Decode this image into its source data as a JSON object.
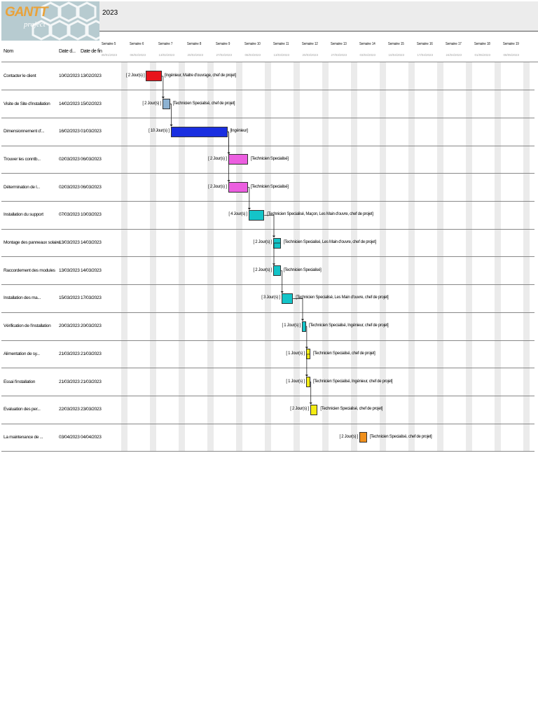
{
  "header": {
    "logo_text": "GANTT",
    "logo_sub": "project",
    "year": "2023"
  },
  "columns": {
    "name": "Nom",
    "start": "Date d...",
    "end": "Date de fin"
  },
  "weeks": [
    {
      "label": "Semaine 5",
      "date": "30/01/2023"
    },
    {
      "label": "Semaine 6",
      "date": "06/02/2023"
    },
    {
      "label": "Semaine 7",
      "date": "13/02/2023"
    },
    {
      "label": "Semaine 8",
      "date": "20/02/2023"
    },
    {
      "label": "Semaine 9",
      "date": "27/02/2023"
    },
    {
      "label": "Semaine 10",
      "date": "06/03/2023"
    },
    {
      "label": "Semaine 11",
      "date": "13/03/2023"
    },
    {
      "label": "Semaine 12",
      "date": "20/03/2023"
    },
    {
      "label": "Semaine 13",
      "date": "27/03/2023"
    },
    {
      "label": "Semaine 14",
      "date": "03/04/2023"
    },
    {
      "label": "Semaine 15",
      "date": "10/04/2023"
    },
    {
      "label": "Semaine 16",
      "date": "17/04/2023"
    },
    {
      "label": "Semaine 17",
      "date": "24/04/2023"
    },
    {
      "label": "Semaine 18",
      "date": "01/05/2023"
    },
    {
      "label": "Semaine 19",
      "date": "08/05/2023"
    }
  ],
  "tasks": [
    {
      "name": "Contacter le client",
      "start": "10/02/2023",
      "end": "13/02/2023",
      "duration": "[ 2 Jour(s) ]",
      "resources": "[Ingénieur, Maitre d'ouvrage, chef de projet]",
      "color": "#e8141c"
    },
    {
      "name": "Visite de Site d'installation",
      "start": "14/02/2023",
      "end": "15/02/2023",
      "duration": "[ 2 Jour(s) ]",
      "resources": "[Technicien Specialisé, chef de projet]",
      "color": "#8db2d2"
    },
    {
      "name": "Dimensionnement d'...",
      "start": "16/02/2023",
      "end": "01/03/2023",
      "duration": "[ 10 Jour(s) ]",
      "resources": "[Ingénieur]",
      "color": "#1a2fe0"
    },
    {
      "name": "Trouver les conntb...",
      "start": "02/03/2023",
      "end": "06/03/2023",
      "duration": "[ 2 Jour(s) ]",
      "resources": "[Technicien Specialisé]",
      "color": "#ec5ee0"
    },
    {
      "name": "Détermination de l...",
      "start": "02/03/2023",
      "end": "06/03/2023",
      "duration": "[ 2 Jour(s) ]",
      "resources": "[Technicien Specialisé]",
      "color": "#ec5ee0"
    },
    {
      "name": "Installation du support",
      "start": "07/03/2023",
      "end": "10/03/2023",
      "duration": "[ 4 Jour(s) ]",
      "resources": "[Technicien Specialisé, Maçon, Les Main d'ouvre, chef de projet]",
      "color": "#14c4c8"
    },
    {
      "name": "Montage des panneaux solaire",
      "start": "13/03/2023",
      "end": "14/03/2023",
      "duration": "[ 2 Jour(s) ]",
      "resources": "[Technicien Specialisé, Les Main d'ouvre, chef de projet]",
      "color": "#14c4c8"
    },
    {
      "name": "Raccordement des modules",
      "start": "13/03/2023",
      "end": "14/03/2023",
      "duration": "[ 2 Jour(s) ]",
      "resources": "[Technicien Specialisé]",
      "color": "#14c4c8"
    },
    {
      "name": "Installation des ma...",
      "start": "15/03/2023",
      "end": "17/03/2023",
      "duration": "[ 3 Jour(s) ]",
      "resources": "[Technicien Specialisé, Les Main d'ouvre, chef de projet]",
      "color": "#14c4c8"
    },
    {
      "name": "Vérification de l'installation",
      "start": "20/03/2023",
      "end": "20/03/2023",
      "duration": "[ 1 Jour(s) ]",
      "resources": "[Technicien Specialisé, Ingénieur, chef de projet]",
      "color": "#14c4c8"
    },
    {
      "name": "Alimentation de sy...",
      "start": "21/03/2023",
      "end": "21/03/2023",
      "duration": "[ 1 Jour(s) ]",
      "resources": "[Technicien Specialisé, chef de projet]",
      "color": "#f4ec14"
    },
    {
      "name": "Essai l'installation",
      "start": "21/03/2023",
      "end": "21/03/2023",
      "duration": "[ 1 Jour(s) ]",
      "resources": "[Technicien Specialisé, Ingénieur, chef de projet]",
      "color": "#f4ec14"
    },
    {
      "name": "Evaluation des per...",
      "start": "22/03/2023",
      "end": "23/03/2023",
      "duration": "[ 2 Jour(s) ]",
      "resources": "[Technicien Specialisé, chef de projet]",
      "color": "#f4ec14"
    },
    {
      "name": "La maintenance de ...",
      "start": "03/04/2023",
      "end": "04/04/2023",
      "duration": "[ 2 Jour(s) ]",
      "resources": "[Technicien Specialisé, chef de projet]",
      "color": "#f0901c"
    }
  ]
}
